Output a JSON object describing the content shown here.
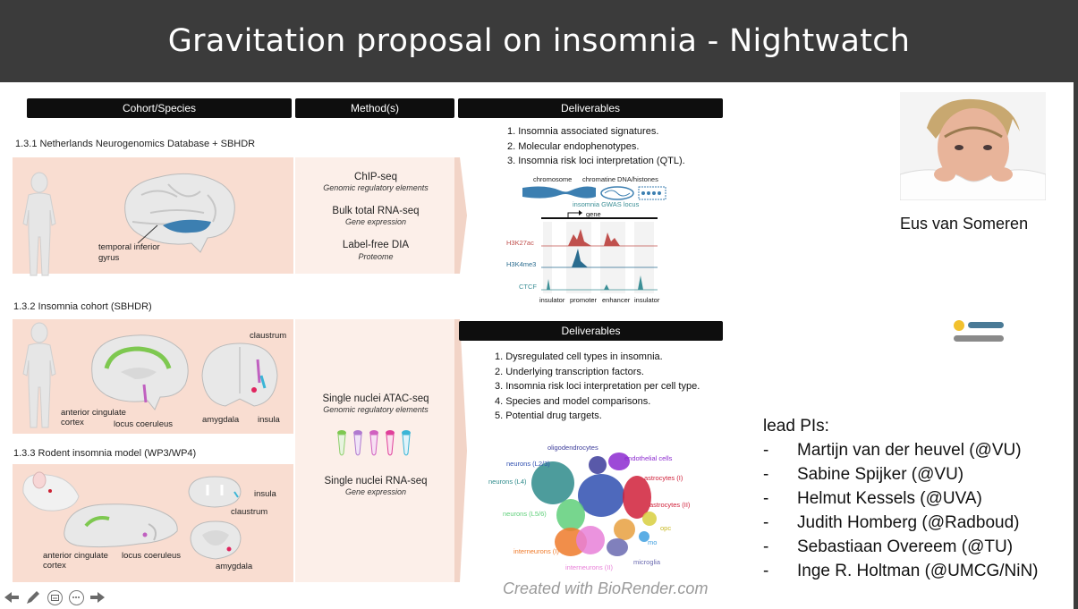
{
  "slide": {
    "title": "Gravitation proposal on insomnia - Nightwatch",
    "headers": {
      "cohort": "Cohort/Species",
      "methods": "Method(s)",
      "deliverables": "Deliverables",
      "deliverables2": "Deliverables"
    },
    "sections": [
      {
        "label": "1.3.1 Netherlands Neurogenomics Database + SBHDR"
      },
      {
        "label": "1.3.2 Insomnia cohort (SBHDR)"
      },
      {
        "label": "1.3.3 Rodent insomnia model (WP3/WP4)"
      }
    ],
    "anatomy": {
      "temporal": "temporal inferior\ngyrus",
      "claustrum": "claustrum",
      "acc": "anterior cingulate\ncortex",
      "lc": "locus coeruleus",
      "amygdala": "amygdala",
      "insula": "insula",
      "insula2": "insula",
      "claustrum2": "claustrum",
      "acc2": "anterior cingulate\ncortex",
      "lc2": "locus coeruleus",
      "amygdala2": "amygdala"
    },
    "methods1": [
      {
        "title": "ChIP-seq",
        "sub": "Genomic regulatory elements"
      },
      {
        "title": "Bulk total RNA-seq",
        "sub": "Gene expression"
      },
      {
        "title": "Label-free DIA",
        "sub": "Proteome"
      }
    ],
    "methods2": [
      {
        "title": "Single nuclei ATAC-seq",
        "sub": "Genomic regulatory elements"
      },
      {
        "title": "Single nuclei RNA-seq",
        "sub": "Gene expression"
      }
    ],
    "deliverables1": [
      "1. Insomnia associated signatures.",
      "2. Molecular endophenotypes.",
      "3. Insomnia risk loci interpretation (QTL)."
    ],
    "deliverables2": [
      "1. Dysregulated cell types in insomnia.",
      "2. Underlying transcription factors.",
      "3. Insomnia risk loci interpretation per cell type.",
      "4. Species and model comparisons.",
      "5. Potential drug targets."
    ],
    "genome": {
      "chromosome": "chromosome",
      "chromatine": "chromatine",
      "dna": "DNA/histones",
      "locus": "insomnia GWAS locus",
      "gene": "gene",
      "tracks": [
        "H3K27ac",
        "H3K4me3",
        "CTCF"
      ],
      "bottom": [
        "insulator",
        "promoter",
        "enhancer",
        "insulator"
      ]
    },
    "umap_labels": {
      "oligo": "oligodendrocytes",
      "endo": "endothelial cells",
      "n23": "neurons (L2/3)",
      "n4": "neurons (L4)",
      "astro1": "astrocytes (I)",
      "astro2": "astrocytes (II)",
      "n56": "neurons (L5/6)",
      "opc": "opc",
      "inter1": "interneurons (I)",
      "inter2": "interneurons (II)",
      "micro": "microglia",
      "mo": "mo"
    },
    "pi": {
      "name": "Eus van Someren",
      "lead_title": "lead PIs:",
      "list": [
        {
          "dash": "-",
          "name": "Martijn van der heuvel  (@VU)"
        },
        {
          "dash": "-",
          "name": "Sabine Spijker (@VU)"
        },
        {
          "dash": "-",
          "name": "Helmut Kessels (@UVA)"
        },
        {
          "dash": "-",
          "name": "Judith Homberg (@Radboud)"
        },
        {
          "dash": "-",
          "name": "Sebastiaan Overeem (@TU)"
        },
        {
          "dash": "-",
          "name": "Inge R. Holtman (@UMCG/NiN)"
        }
      ]
    },
    "biorender": "Created with BioRender.com"
  },
  "colors": {
    "titlebar": "#3b3b3b",
    "panel": "#f9ddd1",
    "accent_blue": "#3c7fb1",
    "accent_green": "#7ec850"
  },
  "toolbar": {
    "icons": [
      "arrow-left-icon",
      "pen-icon",
      "subtitles-icon",
      "more-icon",
      "arrow-right-icon"
    ]
  }
}
